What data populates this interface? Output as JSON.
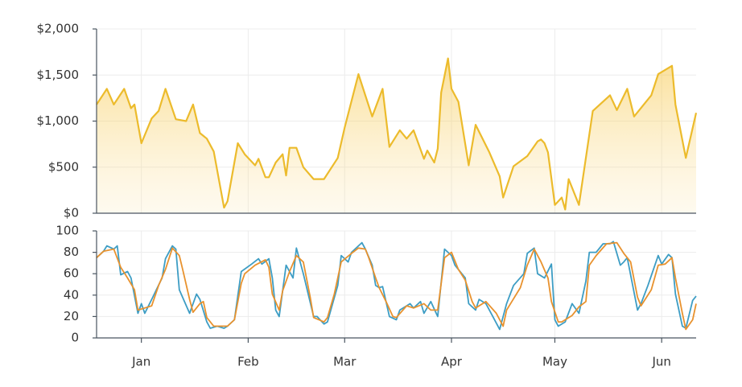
{
  "chart_data": [
    {
      "type": "area",
      "xlim": [
        -13,
        161
      ],
      "xticks": [
        0,
        31,
        59,
        90,
        120,
        151
      ],
      "ylim": [
        0,
        2000
      ],
      "yticks": [
        {
          "value": 0,
          "label": "$0"
        },
        {
          "value": 500,
          "label": "$500"
        },
        {
          "value": 1000,
          "label": "$1,000"
        },
        {
          "value": 1500,
          "label": "$1,500"
        },
        {
          "value": 2000,
          "label": "$2,000"
        }
      ],
      "grid": true,
      "series": [
        {
          "color": "#ecbb2c",
          "x": [
            -13,
            -10,
            -8,
            -5,
            -3,
            -2,
            0,
            3,
            5,
            7,
            10,
            13,
            15,
            17,
            19,
            21,
            24,
            25,
            28,
            30,
            33,
            34,
            36,
            37,
            39,
            41,
            42,
            43,
            45,
            47,
            50,
            53,
            57,
            59,
            63,
            67,
            70,
            72,
            75,
            77,
            79,
            82,
            83,
            85,
            86,
            87,
            89,
            90,
            92,
            95,
            97,
            101,
            104,
            105,
            108,
            112,
            115,
            116,
            117,
            118,
            120,
            122,
            123,
            124,
            127,
            131,
            136,
            138,
            141,
            143,
            148,
            150,
            154,
            155,
            158,
            161
          ],
          "values": [
            1180,
            1350,
            1180,
            1350,
            1140,
            1180,
            760,
            1030,
            1110,
            1350,
            1020,
            1000,
            1180,
            870,
            810,
            670,
            60,
            130,
            760,
            640,
            520,
            590,
            390,
            390,
            550,
            640,
            410,
            710,
            710,
            500,
            370,
            370,
            600,
            930,
            1510,
            1050,
            1350,
            720,
            900,
            810,
            900,
            590,
            680,
            550,
            700,
            1310,
            1680,
            1350,
            1210,
            520,
            960,
            660,
            400,
            170,
            510,
            620,
            780,
            800,
            760,
            660,
            90,
            170,
            40,
            370,
            90,
            1110,
            1280,
            1120,
            1350,
            1050,
            1280,
            1510,
            1600,
            1180,
            600,
            1090
          ]
        }
      ]
    },
    {
      "type": "line",
      "xlim": [
        -13,
        161
      ],
      "xticks": [
        {
          "value": 0,
          "label": "Jan"
        },
        {
          "value": 31,
          "label": "Feb"
        },
        {
          "value": 59,
          "label": "Mar"
        },
        {
          "value": 90,
          "label": "Apr"
        },
        {
          "value": 120,
          "label": "May"
        },
        {
          "value": 151,
          "label": "Jun"
        }
      ],
      "ylim": [
        0,
        100
      ],
      "yticks": [
        0,
        20,
        40,
        60,
        80,
        100
      ],
      "grid": true,
      "series": [
        {
          "color": "#3d9dc4",
          "x": [
            -13,
            -11,
            -10,
            -8,
            -7,
            -6,
            -4,
            -3,
            -1,
            0,
            1,
            3,
            6,
            7,
            9,
            10,
            11,
            14,
            16,
            17,
            19,
            20,
            22,
            24,
            25,
            27,
            29,
            32,
            34,
            35,
            37,
            38,
            39,
            40,
            42,
            44,
            45,
            47,
            50,
            51,
            53,
            54,
            57,
            58,
            60,
            61,
            64,
            65,
            67,
            68,
            69,
            70,
            72,
            74,
            75,
            78,
            79,
            81,
            82,
            84,
            86,
            88,
            90,
            91,
            94,
            95,
            97,
            98,
            100,
            102,
            104,
            106,
            108,
            111,
            112,
            114,
            115,
            117,
            119,
            120,
            121,
            123,
            125,
            127,
            129,
            130,
            132,
            134,
            136,
            137,
            139,
            140,
            141,
            144,
            145,
            147,
            150,
            151,
            153,
            154,
            155,
            157,
            158,
            160,
            161
          ],
          "values": [
            75,
            81,
            86,
            83,
            86,
            59,
            62,
            56,
            23,
            32,
            23,
            36,
            56,
            74,
            86,
            83,
            45,
            23,
            41,
            36,
            15,
            9,
            11,
            9,
            11,
            17,
            62,
            69,
            74,
            69,
            74,
            56,
            26,
            20,
            68,
            56,
            84,
            60,
            20,
            20,
            13,
            15,
            49,
            77,
            71,
            80,
            89,
            83,
            68,
            49,
            47,
            48,
            20,
            17,
            26,
            32,
            28,
            34,
            23,
            34,
            20,
            83,
            77,
            68,
            56,
            32,
            26,
            36,
            32,
            20,
            8,
            32,
            49,
            60,
            79,
            84,
            60,
            56,
            69,
            17,
            11,
            15,
            32,
            23,
            53,
            80,
            80,
            88,
            88,
            90,
            68,
            71,
            75,
            26,
            32,
            49,
            77,
            69,
            78,
            75,
            41,
            11,
            9,
            35,
            39
          ]
        },
        {
          "color": "#e8922e",
          "x": [
            -13,
            -11,
            -8,
            -6,
            -4,
            -2,
            -1,
            1,
            3,
            5,
            7,
            9,
            11,
            12,
            14,
            15,
            17,
            18,
            19,
            21,
            22,
            25,
            27,
            29,
            30,
            33,
            36,
            37,
            38,
            40,
            41,
            43,
            45,
            47,
            49,
            50,
            53,
            54,
            56,
            58,
            61,
            63,
            65,
            66,
            68,
            69,
            71,
            73,
            74,
            77,
            79,
            82,
            84,
            86,
            88,
            90,
            92,
            94,
            96,
            97,
            100,
            103,
            105,
            106,
            110,
            112,
            114,
            116,
            118,
            119,
            121,
            122,
            125,
            127,
            129,
            130,
            132,
            135,
            138,
            140,
            142,
            144,
            145,
            148,
            150,
            152,
            154,
            155,
            157,
            158,
            160,
            161
          ],
          "values": [
            75,
            81,
            83,
            66,
            56,
            45,
            26,
            28,
            30,
            49,
            64,
            84,
            77,
            64,
            36,
            24,
            32,
            34,
            19,
            11,
            11,
            11,
            17,
            51,
            60,
            68,
            73,
            66,
            41,
            26,
            44,
            62,
            77,
            71,
            38,
            19,
            15,
            19,
            41,
            71,
            79,
            84,
            83,
            75,
            56,
            47,
            34,
            20,
            19,
            30,
            28,
            32,
            26,
            26,
            75,
            80,
            64,
            54,
            34,
            28,
            34,
            23,
            11,
            26,
            47,
            68,
            83,
            71,
            56,
            34,
            15,
            15,
            21,
            29,
            34,
            68,
            77,
            88,
            89,
            79,
            71,
            38,
            30,
            45,
            68,
            69,
            75,
            56,
            23,
            8,
            17,
            32
          ]
        }
      ]
    }
  ]
}
